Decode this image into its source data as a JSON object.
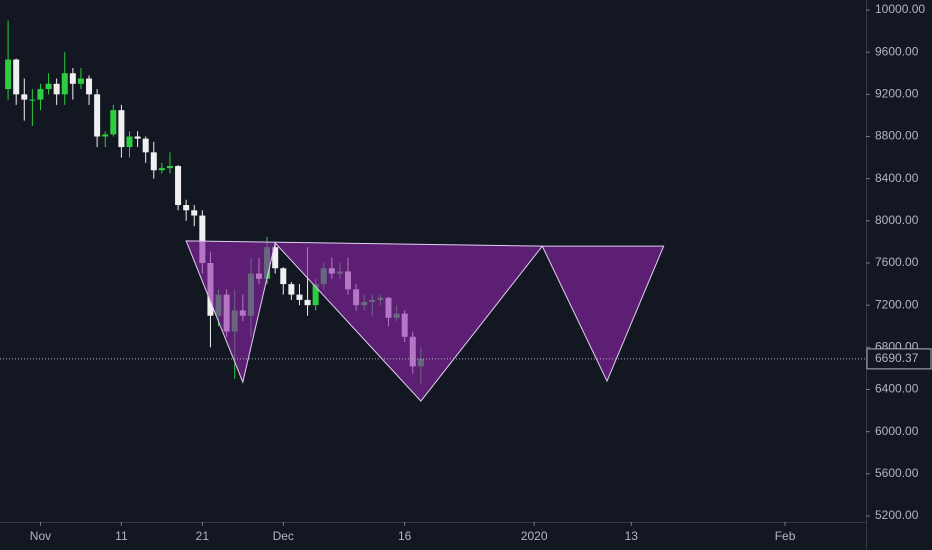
{
  "chart_data": {
    "type": "candlestick",
    "x": [
      "2019-10-28",
      "2019-10-29",
      "2019-10-30",
      "2019-10-31",
      "2019-11-01",
      "2019-11-02",
      "2019-11-03",
      "2019-11-04",
      "2019-11-05",
      "2019-11-06",
      "2019-11-07",
      "2019-11-08",
      "2019-11-09",
      "2019-11-10",
      "2019-11-11",
      "2019-11-12",
      "2019-11-13",
      "2019-11-14",
      "2019-11-15",
      "2019-11-16",
      "2019-11-17",
      "2019-11-18",
      "2019-11-19",
      "2019-11-20",
      "2019-11-21",
      "2019-11-22",
      "2019-11-23",
      "2019-11-24",
      "2019-11-25",
      "2019-11-26",
      "2019-11-27",
      "2019-11-28",
      "2019-11-29",
      "2019-11-30",
      "2019-12-01",
      "2019-12-02",
      "2019-12-03",
      "2019-12-04",
      "2019-12-05",
      "2019-12-06",
      "2019-12-07",
      "2019-12-08",
      "2019-12-09",
      "2019-12-10",
      "2019-12-11",
      "2019-12-12",
      "2019-12-13",
      "2019-12-14",
      "2019-12-15",
      "2019-12-16",
      "2019-12-17",
      "2019-12-18"
    ],
    "open": [
      9250,
      9530,
      9200,
      9150,
      9150,
      9250,
      9300,
      9200,
      9400,
      9300,
      9350,
      9200,
      8800,
      8820,
      9050,
      8700,
      8800,
      8780,
      8650,
      8480,
      8500,
      8520,
      8150,
      8100,
      8050,
      7600,
      7100,
      7300,
      6950,
      7150,
      7100,
      7500,
      7450,
      7750,
      7550,
      7400,
      7300,
      7250,
      7200,
      7400,
      7550,
      7500,
      7520,
      7350,
      7200,
      7230,
      7250,
      7270,
      7080,
      7120,
      6900,
      6620
    ],
    "high": [
      9900,
      9540,
      9350,
      9250,
      9300,
      9400,
      9350,
      9600,
      9450,
      9450,
      9380,
      9250,
      8850,
      9100,
      9100,
      8850,
      8850,
      8800,
      8750,
      8550,
      8650,
      8530,
      8200,
      8150,
      8100,
      7700,
      7350,
      7350,
      7350,
      7300,
      7650,
      7650,
      7850,
      7800,
      7560,
      7420,
      7400,
      7750,
      7450,
      7600,
      7650,
      7600,
      7650,
      7400,
      7300,
      7300,
      7300,
      7280,
      7200,
      7150,
      6950,
      6800
    ],
    "low": [
      9150,
      9100,
      8950,
      8900,
      9050,
      9200,
      9100,
      9100,
      9150,
      9250,
      9100,
      8700,
      8700,
      8800,
      8600,
      8600,
      8700,
      8550,
      8400,
      8450,
      8450,
      8100,
      8000,
      7950,
      7500,
      6800,
      7000,
      6900,
      6500,
      7050,
      6900,
      7400,
      7400,
      7500,
      7300,
      7250,
      7200,
      7100,
      7150,
      7350,
      7450,
      7450,
      7300,
      7150,
      7150,
      7100,
      7200,
      7000,
      7050,
      6850,
      6550,
      6450
    ],
    "close": [
      9530,
      9200,
      9150,
      9150,
      9250,
      9300,
      9200,
      9400,
      9300,
      9350,
      9200,
      8800,
      8820,
      9050,
      8700,
      8800,
      8780,
      8650,
      8480,
      8500,
      8520,
      8150,
      8100,
      8050,
      7600,
      7100,
      7300,
      6950,
      7150,
      7100,
      7500,
      7450,
      7750,
      7550,
      7400,
      7300,
      7250,
      7200,
      7400,
      7550,
      7500,
      7520,
      7350,
      7200,
      7230,
      7250,
      7270,
      7080,
      7120,
      6900,
      6620,
      6690.37
    ],
    "up_color": "#2ecc40",
    "down_color": "#f0f0f0",
    "xlim": [
      "2019-10-27",
      "2020-02-11"
    ],
    "xticks": [
      {
        "value": "2019-11-01",
        "label": "Nov"
      },
      {
        "value": "2019-11-11",
        "label": "11"
      },
      {
        "value": "2019-11-21",
        "label": "21"
      },
      {
        "value": "2019-12-01",
        "label": "Dec"
      },
      {
        "value": "2019-12-16",
        "label": "16"
      },
      {
        "value": "2020-01-01",
        "label": "2020"
      },
      {
        "value": "2020-01-13",
        "label": "13"
      },
      {
        "value": "2020-02-01",
        "label": "Feb"
      }
    ],
    "ylim": [
      5143,
      10095
    ],
    "yticks": [
      {
        "value": 5200,
        "label": "5200.00"
      },
      {
        "value": 5600,
        "label": "5600.00"
      },
      {
        "value": 6000,
        "label": "6000.00"
      },
      {
        "value": 6400,
        "label": "6400.00"
      },
      {
        "value": 6800,
        "label": "6800.00"
      },
      {
        "value": 7200,
        "label": "7200.00"
      },
      {
        "value": 7600,
        "label": "7600.00"
      },
      {
        "value": 8000,
        "label": "8000.00"
      },
      {
        "value": 8400,
        "label": "8400.00"
      },
      {
        "value": 8800,
        "label": "8800.00"
      },
      {
        "value": 9200,
        "label": "9200.00"
      },
      {
        "value": 9600,
        "label": "9600.00"
      },
      {
        "value": 10000,
        "label": "10000.00"
      }
    ],
    "last_price": 6690.37,
    "drawings": [
      {
        "type": "polygon",
        "color": "#8e24aa",
        "x": [
          "2019-11-19",
          "2019-11-26",
          "2019-11-30",
          "2019-12-18",
          "2020-01-02",
          "2020-01-10",
          "2020-01-17",
          "2020-01-02"
        ],
        "y": [
          7810,
          6470,
          7790,
          6290,
          7760,
          6480,
          7760,
          7760
        ]
      }
    ]
  }
}
